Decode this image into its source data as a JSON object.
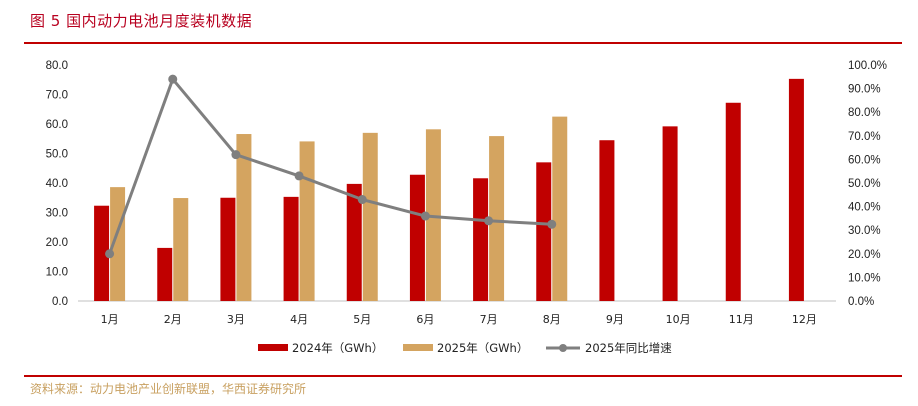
{
  "header": {
    "title": "图 5  国内动力电池月度装机数据"
  },
  "footer": {
    "source": "资料来源：动力电池产业创新联盟，华西证券研究所"
  },
  "colors": {
    "rule": "#c00000",
    "bar2024": "#c00000",
    "bar2025": "#d4a460",
    "line": "#7f7f7f",
    "axis": "#c0c0c0"
  },
  "chart_data": {
    "type": "bar",
    "categories": [
      "1月",
      "2月",
      "3月",
      "4月",
      "5月",
      "6月",
      "7月",
      "8月",
      "9月",
      "10月",
      "11月",
      "12月"
    ],
    "series": [
      {
        "name": "2024年（GWh）",
        "kind": "bar",
        "axis": "left",
        "values": [
          32.3,
          18.0,
          35.0,
          35.3,
          39.7,
          42.8,
          41.6,
          47.0,
          54.5,
          59.2,
          67.2,
          75.3
        ]
      },
      {
        "name": "2025年（GWh）",
        "kind": "bar",
        "axis": "left",
        "values": [
          38.6,
          34.9,
          56.6,
          54.1,
          57.0,
          58.2,
          55.9,
          62.5,
          null,
          null,
          null,
          null
        ]
      },
      {
        "name": "2025年同比增速",
        "kind": "line",
        "axis": "right",
        "values": [
          20.0,
          94.0,
          62.0,
          53.0,
          43.0,
          36.0,
          34.0,
          32.5,
          null,
          null,
          null,
          null
        ]
      }
    ],
    "ylim": [
      0,
      80
    ],
    "y2lim": [
      0,
      100
    ],
    "yticks": [
      "0.0",
      "10.0",
      "20.0",
      "30.0",
      "40.0",
      "50.0",
      "60.0",
      "70.0",
      "80.0"
    ],
    "y2ticks": [
      "0.0%",
      "10.0%",
      "20.0%",
      "30.0%",
      "40.0%",
      "50.0%",
      "60.0%",
      "70.0%",
      "80.0%",
      "90.0%",
      "100.0%"
    ],
    "legend_position": "bottom",
    "grid": false
  }
}
